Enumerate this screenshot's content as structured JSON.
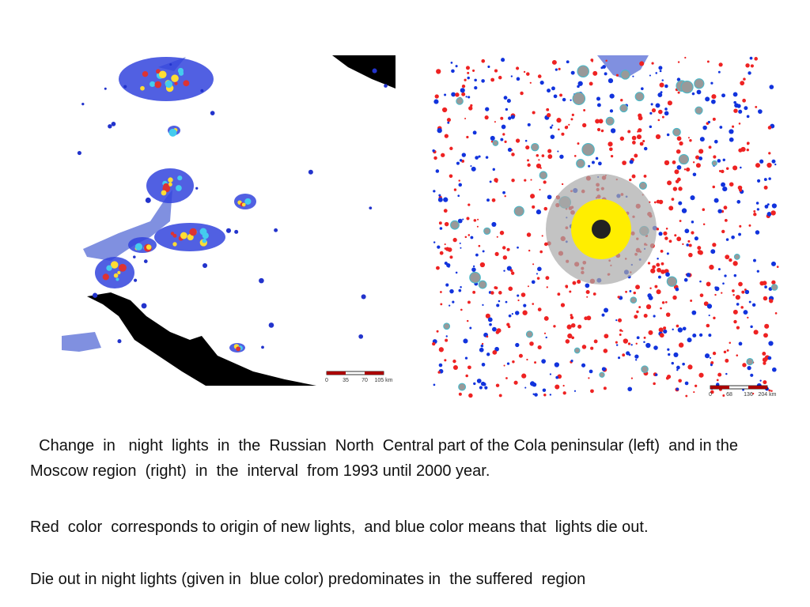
{
  "paragraphs": [
    "  Change  in   night  lights  in  the  Russian  North  Central part of the Cola peninsular (left)  and in the Moscow region  (right)  in  the  interval  from 1993 until 2000 year.",
    "Red  color  corresponds to origin of new lights,  and blue color means that  lights die out.",
    "Die out in night lights (given in  blue color) predominates in  the suffered  region"
  ],
  "left_map": {
    "scale_labels": [
      "0",
      "35",
      "70",
      "105 km"
    ]
  },
  "right_map": {
    "scale_labels": [
      "0",
      "68",
      "136",
      "204 km"
    ]
  }
}
